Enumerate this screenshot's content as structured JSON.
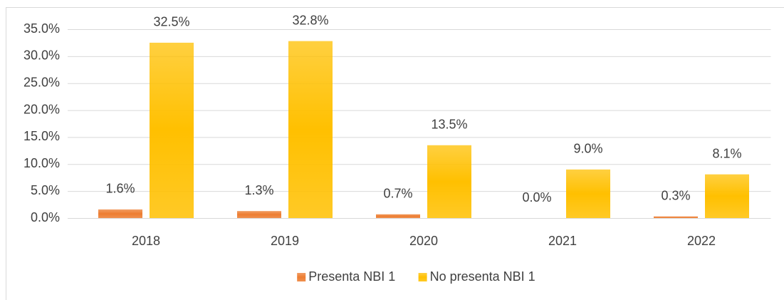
{
  "chart_data": {
    "type": "bar",
    "categories": [
      "2018",
      "2019",
      "2020",
      "2021",
      "2022"
    ],
    "series": [
      {
        "name": "Presenta NBI 1",
        "color": "#ed7d31",
        "values": [
          1.6,
          1.3,
          0.7,
          0.0,
          0.3
        ],
        "value_labels": [
          "1.6%",
          "1.3%",
          "0.7%",
          "0.0%",
          "0.3%"
        ]
      },
      {
        "name": "No presenta NBI 1",
        "color": "#ffc000",
        "values": [
          32.5,
          32.8,
          13.5,
          9.0,
          8.1
        ],
        "value_labels": [
          "32.5%",
          "32.8%",
          "13.5%",
          "9.0%",
          "8.1%"
        ]
      }
    ],
    "ylim": [
      0,
      35
    ],
    "yticks": [
      {
        "value": 0,
        "label": "0.0%"
      },
      {
        "value": 5,
        "label": "5.0%"
      },
      {
        "value": 10,
        "label": "10.0%"
      },
      {
        "value": 15,
        "label": "15.0%"
      },
      {
        "value": 20,
        "label": "20.0%"
      },
      {
        "value": 25,
        "label": "25.0%"
      },
      {
        "value": 30,
        "label": "30.0%"
      },
      {
        "value": 35,
        "label": "35.0%"
      }
    ],
    "grid": true,
    "legend": "bottom"
  }
}
